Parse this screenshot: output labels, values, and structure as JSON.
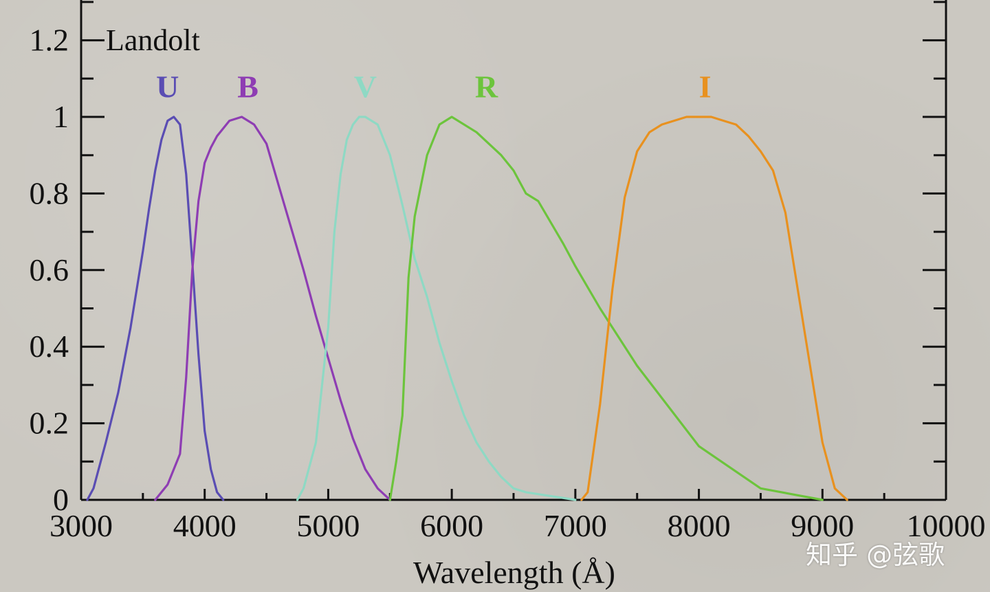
{
  "chart_data": {
    "type": "line",
    "title": "Landolt",
    "xlabel": "Wavelength (Å)",
    "ylabel": "",
    "xlim": [
      3000,
      10000
    ],
    "ylim": [
      0,
      1.3
    ],
    "xticks": [
      "3000",
      "4000",
      "5000",
      "6000",
      "7000",
      "8000",
      "9000",
      "10000"
    ],
    "yticks": [
      "0",
      "0.2",
      "0.4",
      "0.6",
      "0.8",
      "1",
      "1.2"
    ],
    "series": [
      {
        "name": "U",
        "color": "#5a4db3",
        "label_x": 3700,
        "label_y": 1.08,
        "x": [
          3050,
          3100,
          3200,
          3300,
          3400,
          3500,
          3550,
          3600,
          3650,
          3700,
          3750,
          3800,
          3850,
          3900,
          3950,
          4000,
          4050,
          4100,
          4150
        ],
        "y": [
          0.0,
          0.03,
          0.15,
          0.28,
          0.45,
          0.65,
          0.76,
          0.86,
          0.94,
          0.99,
          1.0,
          0.98,
          0.85,
          0.62,
          0.38,
          0.18,
          0.08,
          0.02,
          0.0
        ]
      },
      {
        "name": "B",
        "color": "#8e3db3",
        "label_x": 4350,
        "label_y": 1.08,
        "x": [
          3600,
          3700,
          3800,
          3850,
          3900,
          3950,
          4000,
          4050,
          4100,
          4200,
          4300,
          4400,
          4500,
          4600,
          4700,
          4800,
          4900,
          5000,
          5100,
          5200,
          5300,
          5400,
          5500
        ],
        "y": [
          0.0,
          0.04,
          0.12,
          0.32,
          0.6,
          0.78,
          0.88,
          0.92,
          0.95,
          0.99,
          1.0,
          0.98,
          0.93,
          0.82,
          0.71,
          0.6,
          0.48,
          0.37,
          0.26,
          0.16,
          0.08,
          0.03,
          0.0
        ]
      },
      {
        "name": "V",
        "color": "#8ed9c4",
        "label_x": 5300,
        "label_y": 1.08,
        "x": [
          4750,
          4800,
          4900,
          5000,
          5050,
          5100,
          5150,
          5200,
          5250,
          5300,
          5400,
          5500,
          5600,
          5700,
          5800,
          5900,
          6000,
          6100,
          6200,
          6300,
          6400,
          6500,
          6600,
          6800,
          7000
        ],
        "y": [
          0.0,
          0.03,
          0.15,
          0.45,
          0.7,
          0.85,
          0.94,
          0.98,
          1.0,
          1.0,
          0.98,
          0.9,
          0.77,
          0.63,
          0.53,
          0.41,
          0.31,
          0.22,
          0.15,
          0.1,
          0.06,
          0.03,
          0.02,
          0.01,
          0.0
        ]
      },
      {
        "name": "R",
        "color": "#6cc43c",
        "label_x": 6280,
        "label_y": 1.08,
        "x": [
          5500,
          5550,
          5600,
          5650,
          5700,
          5800,
          5900,
          6000,
          6200,
          6400,
          6500,
          6600,
          6700,
          6900,
          7000,
          7200,
          7500,
          8000,
          8500,
          9000
        ],
        "y": [
          0.0,
          0.1,
          0.22,
          0.58,
          0.74,
          0.9,
          0.98,
          1.0,
          0.96,
          0.9,
          0.86,
          0.8,
          0.78,
          0.67,
          0.61,
          0.5,
          0.35,
          0.14,
          0.03,
          0.0
        ]
      },
      {
        "name": "I",
        "color": "#e8911f",
        "label_x": 8050,
        "label_y": 1.08,
        "x": [
          7050,
          7100,
          7200,
          7300,
          7400,
          7500,
          7600,
          7700,
          7900,
          8000,
          8100,
          8200,
          8300,
          8400,
          8500,
          8600,
          8700,
          8800,
          8900,
          9000,
          9100,
          9200
        ],
        "y": [
          0.0,
          0.02,
          0.25,
          0.55,
          0.79,
          0.91,
          0.96,
          0.98,
          1.0,
          1.0,
          1.0,
          0.99,
          0.98,
          0.95,
          0.91,
          0.86,
          0.75,
          0.55,
          0.35,
          0.15,
          0.03,
          0.0
        ]
      }
    ]
  },
  "watermark": "知乎 @弦歌"
}
